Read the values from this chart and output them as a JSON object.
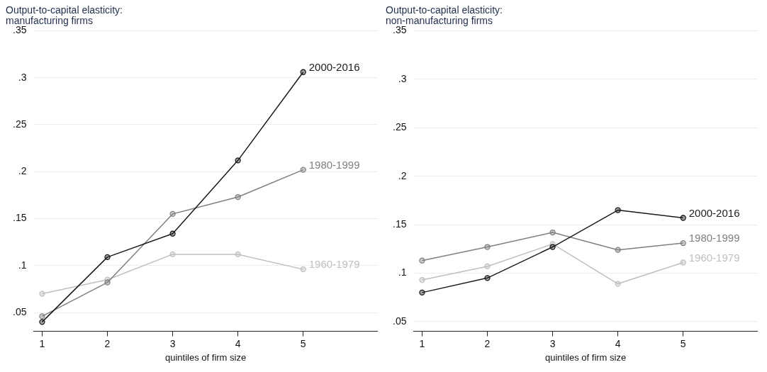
{
  "chart_data": [
    {
      "type": "line",
      "title": "Output-to-capital elasticity:\nmanufacturing firms",
      "xlabel": "quintiles of firm size",
      "x": [
        1,
        2,
        3,
        4,
        5
      ],
      "xlim": [
        0.87,
        6.14
      ],
      "xticks": [
        1,
        2,
        3,
        4,
        5
      ],
      "ylim": [
        0.03,
        0.35
      ],
      "yticks": [
        {
          "value": 0.05,
          "label": ".05"
        },
        {
          "value": 0.1,
          "label": ".1"
        },
        {
          "value": 0.15,
          "label": ".15"
        },
        {
          "value": 0.2,
          "label": ".2"
        },
        {
          "value": 0.25,
          "label": ".25"
        },
        {
          "value": 0.3,
          "label": ".3"
        },
        {
          "value": 0.35,
          "label": ".35"
        }
      ],
      "grid": "y",
      "legend": false,
      "marker": "circle",
      "line_style": "solid",
      "series": [
        {
          "name": "2000-2016",
          "color": "#1a1a1a",
          "values": [
            0.04,
            0.109,
            0.134,
            0.212,
            0.306
          ]
        },
        {
          "name": "1980-1999",
          "color": "#7f7f7f",
          "values": [
            0.046,
            0.082,
            0.155,
            0.173,
            0.202
          ]
        },
        {
          "name": "1960-1979",
          "color": "#bfbfbf",
          "values": [
            0.07,
            0.085,
            0.112,
            0.112,
            0.096
          ]
        }
      ]
    },
    {
      "type": "line",
      "title": "Output-to-capital elasticity:\nnon-manufacturing firms",
      "xlabel": "quintiles of firm size",
      "x": [
        1,
        2,
        3,
        4,
        5
      ],
      "xlim": [
        0.87,
        6.14
      ],
      "xticks": [
        1,
        2,
        3,
        4,
        5
      ],
      "ylim": [
        0.04,
        0.35
      ],
      "yticks": [
        {
          "value": 0.05,
          "label": ".05"
        },
        {
          "value": 0.1,
          "label": ".1"
        },
        {
          "value": 0.15,
          "label": ".15"
        },
        {
          "value": 0.2,
          "label": ".2"
        },
        {
          "value": 0.25,
          "label": ".25"
        },
        {
          "value": 0.3,
          "label": ".3"
        },
        {
          "value": 0.35,
          "label": ".35"
        }
      ],
      "grid": "y",
      "legend": false,
      "marker": "circle",
      "line_style": "solid",
      "series": [
        {
          "name": "2000-2016",
          "color": "#1a1a1a",
          "values": [
            0.08,
            0.095,
            0.127,
            0.165,
            0.157
          ]
        },
        {
          "name": "1980-1999",
          "color": "#7f7f7f",
          "values": [
            0.113,
            0.127,
            0.142,
            0.124,
            0.131
          ]
        },
        {
          "name": "1960-1979",
          "color": "#bfbfbf",
          "values": [
            0.093,
            0.107,
            0.13,
            0.089,
            0.111
          ]
        }
      ]
    }
  ]
}
